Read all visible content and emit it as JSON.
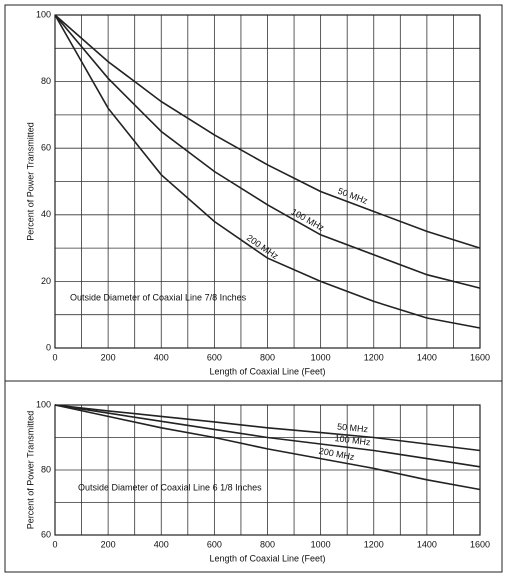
{
  "chart_data": [
    {
      "type": "line",
      "x": [
        0,
        200,
        400,
        600,
        800,
        1000,
        1200,
        1400,
        1600
      ],
      "series": [
        {
          "name": "50 MHz",
          "color": "#222222",
          "values": [
            100,
            86,
            74,
            64,
            55,
            47,
            41,
            35,
            30
          ]
        },
        {
          "name": "100 MHz",
          "color": "#222222",
          "values": [
            100,
            81,
            65,
            53,
            43,
            34,
            28,
            22,
            18
          ]
        },
        {
          "name": "200 MHz",
          "color": "#222222",
          "values": [
            100,
            72,
            52,
            38,
            27,
            20,
            14,
            9,
            6
          ]
        }
      ],
      "xlim": [
        0,
        1600
      ],
      "ylim": [
        0,
        100
      ],
      "xticks": [
        0,
        200,
        400,
        600,
        800,
        1000,
        1200,
        1400,
        1600
      ],
      "yticks": [
        0,
        20,
        40,
        60,
        80,
        100
      ],
      "xlabel": "Length of Coaxial Line (Feet)",
      "ylabel": "Percent of Power Transmitted",
      "annotation": "Outside Diameter of Coaxial Line 7/8 Inches",
      "grid": true
    },
    {
      "type": "line",
      "x": [
        0,
        200,
        400,
        600,
        800,
        1000,
        1200,
        1400,
        1600
      ],
      "series": [
        {
          "name": "50 MHz",
          "color": "#222222",
          "values": [
            100,
            98.2,
            96.5,
            94.8,
            93,
            91.5,
            90,
            88,
            86
          ]
        },
        {
          "name": "100 MHz",
          "color": "#222222",
          "values": [
            100,
            97.5,
            95,
            92.5,
            90,
            88,
            86,
            83.5,
            81
          ]
        },
        {
          "name": "200 MHz",
          "color": "#222222",
          "values": [
            100,
            96.5,
            93,
            90,
            86.5,
            83.5,
            80.5,
            77,
            74
          ]
        }
      ],
      "xlim": [
        0,
        1600
      ],
      "ylim": [
        60,
        100
      ],
      "xticks": [
        0,
        200,
        400,
        600,
        800,
        1000,
        1200,
        1400,
        1600
      ],
      "yticks": [
        60,
        80,
        100
      ],
      "xlabel": "Length of Coaxial Line (Feet)",
      "ylabel": "Percent of Power Transmitted",
      "annotation": "Outside Diameter of Coaxial Line 6 1/8 Inches",
      "grid": true
    }
  ]
}
